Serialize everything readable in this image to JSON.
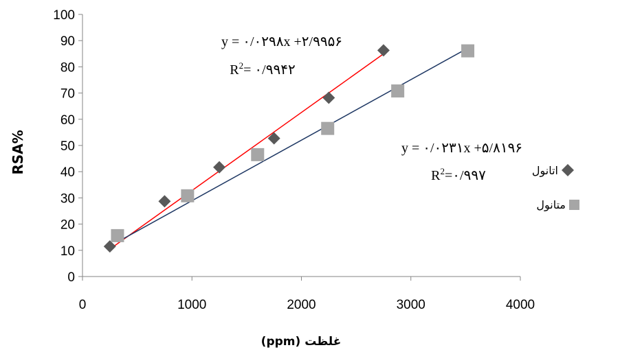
{
  "chart_data": {
    "type": "scatter",
    "title": "",
    "xlabel": "غلظت (ppm)",
    "ylabel": "RSA%",
    "xlim": [
      0,
      4000
    ],
    "ylim": [
      0,
      100
    ],
    "xticks": [
      "0",
      "1000",
      "2000",
      "3000",
      "4000"
    ],
    "yticks": [
      "0",
      "10",
      "20",
      "30",
      "40",
      "50",
      "60",
      "70",
      "80",
      "90",
      "100"
    ],
    "grid": false,
    "legend_position": "right",
    "series": [
      {
        "name": "اتانول",
        "marker": "diamond",
        "color": "#595959",
        "x": [
          250,
          750,
          1250,
          1750,
          2250,
          2750
        ],
        "y": [
          11.5,
          28.7,
          41.7,
          52.7,
          68.2,
          86.3
        ],
        "trendline": {
          "slope": 0.0298,
          "intercept": 2.9956,
          "x_range": [
            250,
            2750
          ],
          "color": "#ff0000"
        },
        "equation": "y = ۰/۰۲۹۸x +۲/۹۹۵۶",
        "r2_label": "R",
        "r2_sup": "2",
        "r2_value": "= ۰/۹۹۴۲"
      },
      {
        "name": "متانول",
        "marker": "square",
        "color": "#a6a6a6",
        "x": [
          320,
          960,
          1600,
          2240,
          2880,
          3520
        ],
        "y": [
          15.6,
          30.8,
          46.5,
          56.5,
          70.8,
          86.1
        ],
        "trendline": {
          "slope": 0.0231,
          "intercept": 5.8196,
          "x_range": [
            320,
            3520
          ],
          "color": "#1f3864"
        },
        "equation": "y = ۰/۰۲۳۱x +۵/۸۱۹۶",
        "r2_label": "R",
        "r2_sup": "2",
        "r2_value": "=۰/۹۹۷"
      }
    ]
  }
}
